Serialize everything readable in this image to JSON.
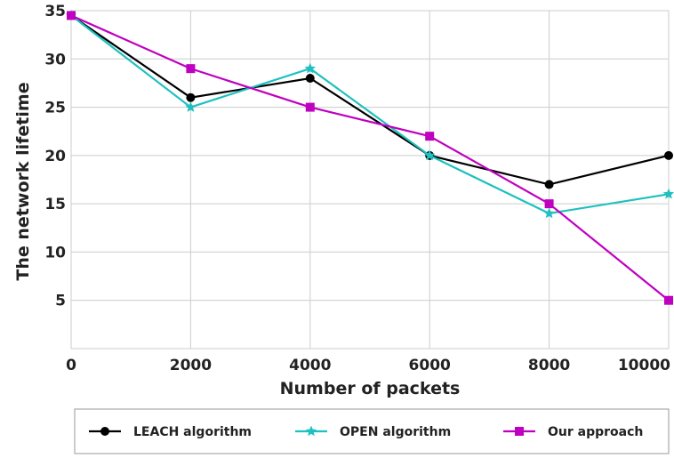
{
  "chart_data": {
    "type": "line",
    "xlabel": "Number of packets",
    "ylabel": "The network lifetime",
    "x": [
      0,
      2000,
      4000,
      6000,
      8000,
      10000
    ],
    "xlim": [
      0,
      10000
    ],
    "ylim": [
      0,
      35
    ],
    "xticks": [
      0,
      2000,
      4000,
      6000,
      8000,
      10000
    ],
    "yticks": [
      5,
      10,
      15,
      20,
      25,
      30,
      35
    ],
    "grid": true,
    "legend_position": "bottom",
    "series": [
      {
        "name": "LEACH algorithm",
        "color": "#000000",
        "marker": "circle",
        "values": [
          34.5,
          26,
          28,
          20,
          17,
          20
        ]
      },
      {
        "name": "OPEN algorithm",
        "color": "#1ec0c0",
        "marker": "star",
        "values": [
          34.5,
          25,
          29,
          20,
          14,
          16
        ]
      },
      {
        "name": "Our approach",
        "color": "#c000c0",
        "marker": "square",
        "values": [
          34.5,
          29,
          25,
          22,
          15,
          5
        ]
      }
    ]
  }
}
